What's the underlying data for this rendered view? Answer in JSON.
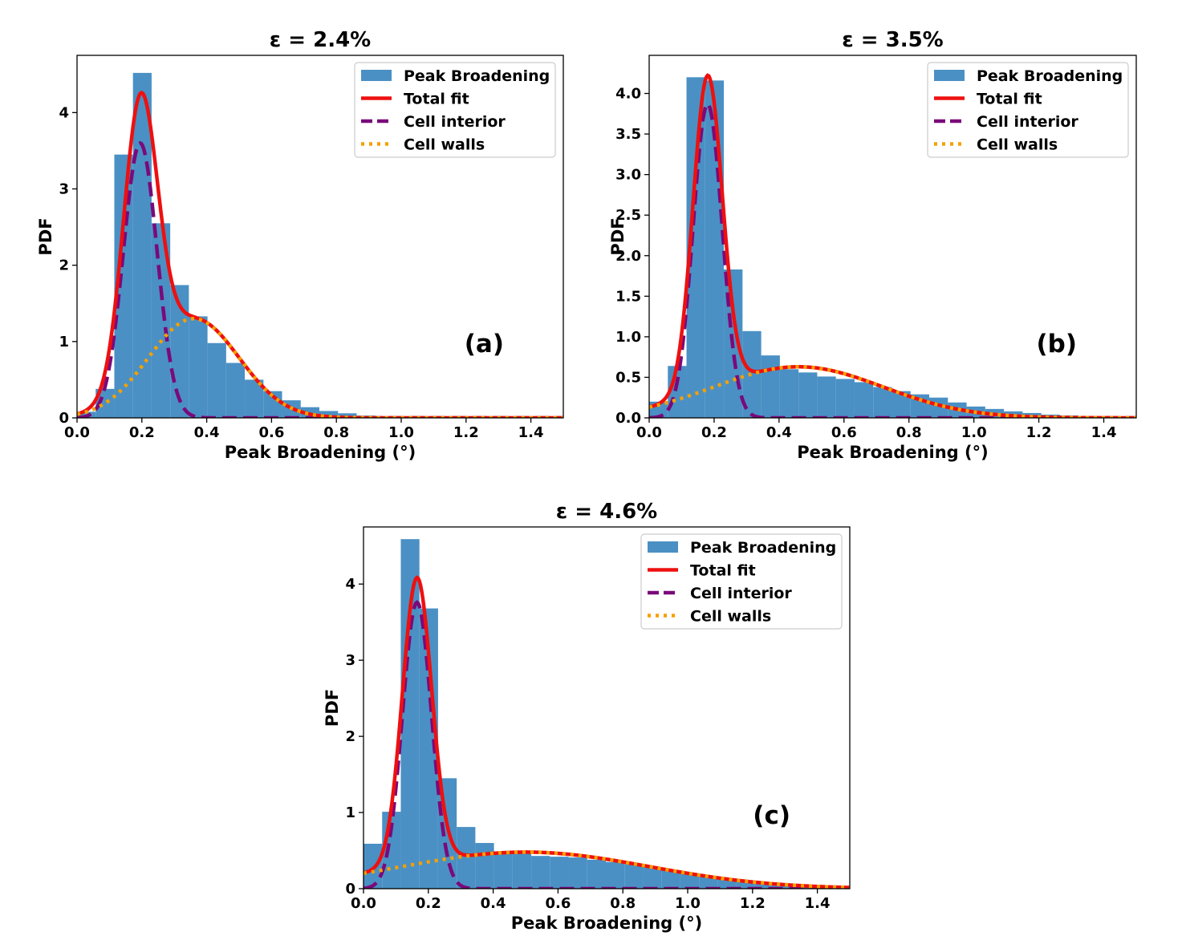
{
  "colors": {
    "histogram": "#4a90c4",
    "total_fit": "#ee1010",
    "cell_interior": "#7a0a7a",
    "cell_walls": "#f5a000"
  },
  "legend": [
    "Peak Broadening",
    "Total fit",
    "Cell interior",
    "Cell walls"
  ],
  "chart_data": [
    {
      "type": "bar",
      "panel_label": "(a)",
      "title": "ε = 2.4%",
      "xlabel": "Peak Broadening (°)",
      "ylabel": "PDF",
      "xlim": [
        0.0,
        1.5
      ],
      "ylim": [
        0,
        4.75
      ],
      "xticks": [
        0.0,
        0.2,
        0.4,
        0.6,
        0.8,
        1.0,
        1.2,
        1.4
      ],
      "xtick_labels": [
        "0.0",
        "0.2",
        "0.4",
        "0.6",
        "0.8",
        "1.0",
        "1.2",
        "1.4"
      ],
      "yticks": [
        0,
        1,
        2,
        3,
        4
      ],
      "ytick_labels": [
        "0",
        "1",
        "2",
        "3",
        "4"
      ],
      "legend_position": "top-right",
      "histogram": {
        "bin_edges": [
          0.0,
          0.0575,
          0.115,
          0.1725,
          0.23,
          0.2875,
          0.345,
          0.4025,
          0.46,
          0.5175,
          0.575,
          0.6325,
          0.69,
          0.7475,
          0.805,
          0.8625,
          0.92,
          0.9775,
          1.035,
          1.0925,
          1.15,
          1.2075,
          1.265,
          1.3225,
          1.38,
          1.4375,
          1.5
        ],
        "density": [
          0.08,
          0.38,
          3.45,
          4.52,
          2.55,
          1.74,
          1.33,
          0.98,
          0.72,
          0.5,
          0.35,
          0.23,
          0.14,
          0.09,
          0.06,
          0.03,
          0.02,
          0.01,
          0.0,
          0.0,
          0.0,
          0.0,
          0.0,
          0.0,
          0.0,
          0.0
        ]
      },
      "cell_interior": {
        "model": "gaussian",
        "mean": 0.195,
        "sigma": 0.052,
        "amplitude": 3.6
      },
      "cell_walls": {
        "model": "gaussian",
        "mean": 0.36,
        "sigma": 0.14,
        "amplitude": 1.3
      }
    },
    {
      "type": "bar",
      "panel_label": "(b)",
      "title": "ε = 3.5%",
      "xlabel": "Peak Broadening (°)",
      "ylabel": "PDF",
      "xlim": [
        0.0,
        1.5
      ],
      "ylim": [
        0,
        4.47
      ],
      "xticks": [
        0.0,
        0.2,
        0.4,
        0.6,
        0.8,
        1.0,
        1.2,
        1.4
      ],
      "xtick_labels": [
        "0.0",
        "0.2",
        "0.4",
        "0.6",
        "0.8",
        "1.0",
        "1.2",
        "1.4"
      ],
      "yticks": [
        0.0,
        0.5,
        1.0,
        1.5,
        2.0,
        2.5,
        3.0,
        3.5,
        4.0
      ],
      "ytick_labels": [
        "0.0",
        "0.5",
        "1.0",
        "1.5",
        "2.0",
        "2.5",
        "3.0",
        "3.5",
        "4.0"
      ],
      "legend_position": "top-right",
      "histogram": {
        "bin_edges": [
          0.0,
          0.0575,
          0.115,
          0.1725,
          0.23,
          0.2875,
          0.345,
          0.4025,
          0.46,
          0.5175,
          0.575,
          0.6325,
          0.69,
          0.7475,
          0.805,
          0.8625,
          0.92,
          0.9775,
          1.035,
          1.0925,
          1.15,
          1.2075,
          1.265,
          1.3225,
          1.38,
          1.4375,
          1.5
        ],
        "density": [
          0.2,
          0.64,
          4.2,
          4.16,
          1.83,
          1.07,
          0.77,
          0.6,
          0.56,
          0.51,
          0.48,
          0.44,
          0.38,
          0.33,
          0.29,
          0.25,
          0.19,
          0.14,
          0.11,
          0.08,
          0.06,
          0.04,
          0.03,
          0.02,
          0.01,
          0.0
        ]
      },
      "cell_interior": {
        "model": "gaussian",
        "mean": 0.18,
        "sigma": 0.045,
        "amplitude": 3.87
      },
      "cell_walls": {
        "model": "gaussian",
        "mean": 0.46,
        "sigma": 0.26,
        "amplitude": 0.63
      }
    },
    {
      "type": "bar",
      "panel_label": "(c)",
      "title": "ε = 4.6%",
      "xlabel": "Peak Broadening (°)",
      "ylabel": "PDF",
      "xlim": [
        0.0,
        1.5
      ],
      "ylim": [
        0,
        4.75
      ],
      "xticks": [
        0.0,
        0.2,
        0.4,
        0.6,
        0.8,
        1.0,
        1.2,
        1.4
      ],
      "xtick_labels": [
        "0.0",
        "0.2",
        "0.4",
        "0.6",
        "0.8",
        "1.0",
        "1.2",
        "1.4"
      ],
      "yticks": [
        0,
        1,
        2,
        3,
        4
      ],
      "ytick_labels": [
        "0",
        "1",
        "2",
        "3",
        "4"
      ],
      "legend_position": "top-right",
      "histogram": {
        "bin_edges": [
          0.0,
          0.0575,
          0.115,
          0.1725,
          0.23,
          0.2875,
          0.345,
          0.4025,
          0.46,
          0.5175,
          0.575,
          0.6325,
          0.69,
          0.7475,
          0.805,
          0.8625,
          0.92,
          0.9775,
          1.035,
          1.0925,
          1.15,
          1.2075,
          1.265,
          1.3225,
          1.38,
          1.4375,
          1.5
        ],
        "density": [
          0.59,
          1.01,
          4.59,
          3.68,
          1.45,
          0.81,
          0.6,
          0.49,
          0.46,
          0.43,
          0.42,
          0.41,
          0.38,
          0.35,
          0.32,
          0.28,
          0.24,
          0.2,
          0.16,
          0.12,
          0.09,
          0.06,
          0.04,
          0.03,
          0.02,
          0.01
        ]
      },
      "cell_interior": {
        "model": "gaussian",
        "mean": 0.165,
        "sigma": 0.045,
        "amplitude": 3.76
      },
      "cell_walls": {
        "model": "gaussian",
        "mean": 0.5,
        "sigma": 0.38,
        "amplitude": 0.48
      }
    }
  ]
}
